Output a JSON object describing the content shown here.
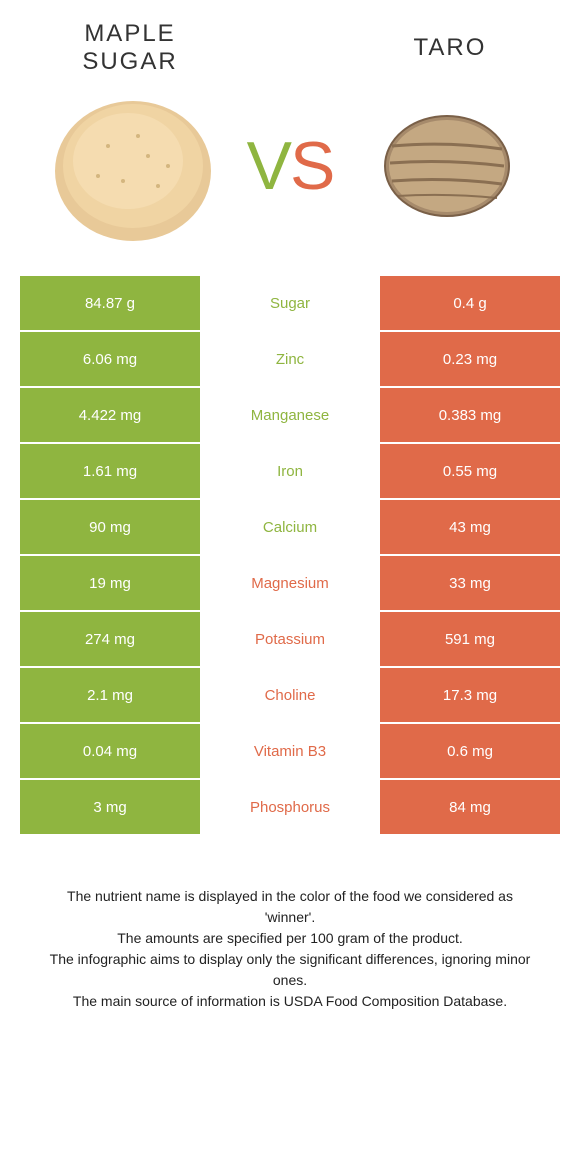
{
  "header": {
    "left_title_line1": "Maple",
    "left_title_line2": "sugar",
    "right_title": "Taro",
    "vs_v": "V",
    "vs_s": "S"
  },
  "colors": {
    "green": "#8fb540",
    "orange": "#e06a49",
    "white": "#ffffff",
    "text": "#333333"
  },
  "table": {
    "rows": [
      {
        "left": "84.87 g",
        "label": "Sugar",
        "right": "0.4 g",
        "winner": "left"
      },
      {
        "left": "6.06 mg",
        "label": "Zinc",
        "right": "0.23 mg",
        "winner": "left"
      },
      {
        "left": "4.422 mg",
        "label": "Manganese",
        "right": "0.383 mg",
        "winner": "left"
      },
      {
        "left": "1.61 mg",
        "label": "Iron",
        "right": "0.55 mg",
        "winner": "left"
      },
      {
        "left": "90 mg",
        "label": "Calcium",
        "right": "43 mg",
        "winner": "left"
      },
      {
        "left": "19 mg",
        "label": "Magnesium",
        "right": "33 mg",
        "winner": "right"
      },
      {
        "left": "274 mg",
        "label": "Potassium",
        "right": "591 mg",
        "winner": "right"
      },
      {
        "left": "2.1 mg",
        "label": "Choline",
        "right": "17.3 mg",
        "winner": "right"
      },
      {
        "left": "0.04 mg",
        "label": "Vitamin B3",
        "right": "0.6 mg",
        "winner": "right"
      },
      {
        "left": "3 mg",
        "label": "Phosphorus",
        "right": "84 mg",
        "winner": "right"
      }
    ]
  },
  "footer": {
    "line1": "The nutrient name is displayed in the color of the food we considered as 'winner'.",
    "line2": "The amounts are specified per 100 gram of the product.",
    "line3": "The infographic aims to display only the significant differences, ignoring minor ones.",
    "line4": "The main source of information is USDA Food Composition Database."
  }
}
